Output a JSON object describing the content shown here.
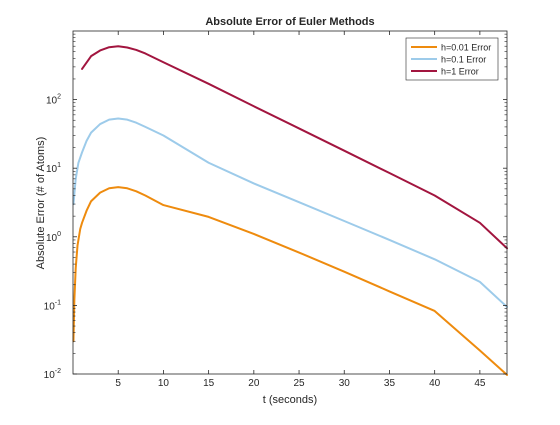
{
  "chart_data": {
    "type": "line",
    "title": "Absolute Error of Euler Methods",
    "xlabel": "t (seconds)",
    "ylabel": "Absolute Error (# of Atoms)",
    "xlim": [
      0,
      48
    ],
    "ylim": [
      0.01,
      1000
    ],
    "yscale": "log",
    "xticks": [
      5,
      10,
      15,
      20,
      25,
      30,
      35,
      40,
      45
    ],
    "yticks": [
      {
        "value": 0.01,
        "base": "10",
        "exp": "-2"
      },
      {
        "value": 0.1,
        "base": "10",
        "exp": "-1"
      },
      {
        "value": 1,
        "base": "10",
        "exp": "0"
      },
      {
        "value": 10,
        "base": "10",
        "exp": "1"
      },
      {
        "value": 100,
        "base": "10",
        "exp": "2"
      }
    ],
    "grid": false,
    "legend_location": "top-right",
    "series": [
      {
        "name": "h=0.01 Error",
        "color": "#EE8B0E",
        "points": [
          [
            0.05,
            0.03
          ],
          [
            0.15,
            0.12
          ],
          [
            0.3,
            0.35
          ],
          [
            0.5,
            0.75
          ],
          [
            0.8,
            1.3
          ],
          [
            1,
            1.6
          ],
          [
            1.5,
            2.4
          ],
          [
            2,
            3.3
          ],
          [
            3,
            4.4
          ],
          [
            4,
            5.1
          ],
          [
            5,
            5.3
          ],
          [
            6,
            5.1
          ],
          [
            7,
            4.6
          ],
          [
            8,
            4.0
          ],
          [
            10,
            2.9
          ],
          [
            15,
            1.95
          ],
          [
            20,
            1.1
          ],
          [
            25,
            0.59
          ],
          [
            30,
            0.31
          ],
          [
            35,
            0.16
          ],
          [
            40,
            0.083
          ],
          [
            45,
            0.022
          ],
          [
            48,
            0.0097
          ]
        ]
      },
      {
        "name": "h=0.1 Error",
        "color": "#9DCBEA",
        "points": [
          [
            0.05,
            3.0
          ],
          [
            0.3,
            7
          ],
          [
            0.6,
            12
          ],
          [
            1,
            17
          ],
          [
            1.5,
            25
          ],
          [
            2,
            33
          ],
          [
            3,
            44
          ],
          [
            4,
            51
          ],
          [
            5,
            53
          ],
          [
            6,
            51
          ],
          [
            7,
            46
          ],
          [
            8,
            40
          ],
          [
            10,
            30
          ],
          [
            15,
            12
          ],
          [
            20,
            6.0
          ],
          [
            25,
            3.2
          ],
          [
            30,
            1.7
          ],
          [
            35,
            0.9
          ],
          [
            40,
            0.47
          ],
          [
            45,
            0.22
          ],
          [
            48,
            0.095
          ]
        ]
      },
      {
        "name": "h=1 Error",
        "color": "#A2153F",
        "points": [
          [
            1,
            280
          ],
          [
            2,
            430
          ],
          [
            3,
            520
          ],
          [
            4,
            580
          ],
          [
            5,
            600
          ],
          [
            6,
            575
          ],
          [
            7,
            530
          ],
          [
            8,
            470
          ],
          [
            10,
            350
          ],
          [
            15,
            170
          ],
          [
            20,
            80
          ],
          [
            25,
            38
          ],
          [
            30,
            18
          ],
          [
            35,
            8.5
          ],
          [
            40,
            4.0
          ],
          [
            45,
            1.6
          ],
          [
            48,
            0.68
          ]
        ]
      }
    ]
  }
}
